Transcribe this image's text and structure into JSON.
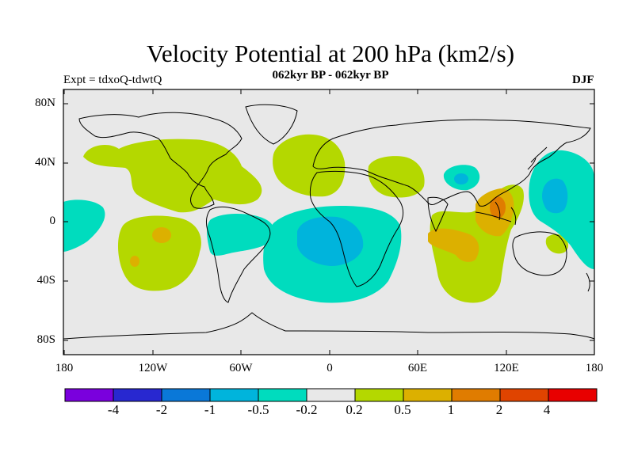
{
  "title": "Velocity Potential at 200 hPa (km2/s)",
  "subtitle": "062kyr BP - 062kyr BP",
  "experiment_label": "Expt = tdxoQ-tdwtQ",
  "season_label": "DJF",
  "axes": {
    "y_ticks": [
      "80N",
      "40N",
      "0",
      "40S",
      "80S"
    ],
    "x_ticks": [
      "180",
      "120W",
      "60W",
      "0",
      "60E",
      "120E",
      "180"
    ]
  },
  "colorbar": {
    "colors": [
      "#7a00dd",
      "#2828d0",
      "#0a78d8",
      "#00b4dc",
      "#00dcbe",
      "#e8e8e8",
      "#b4d800",
      "#dcb000",
      "#e07c00",
      "#e04400",
      "#e80000"
    ],
    "labels": [
      "-4",
      "-2",
      "-1",
      "-0.5",
      "-0.2",
      "0.2",
      "0.5",
      "1",
      "2",
      "4"
    ]
  },
  "map_colors": {
    "background": "#e8e8e8",
    "yellowgreen": "#b4d800",
    "orange": "#dcb000",
    "cyan": "#00dcbe",
    "blue": "#00b4dc",
    "darkorange": "#e07c00",
    "coast": "#000000"
  }
}
